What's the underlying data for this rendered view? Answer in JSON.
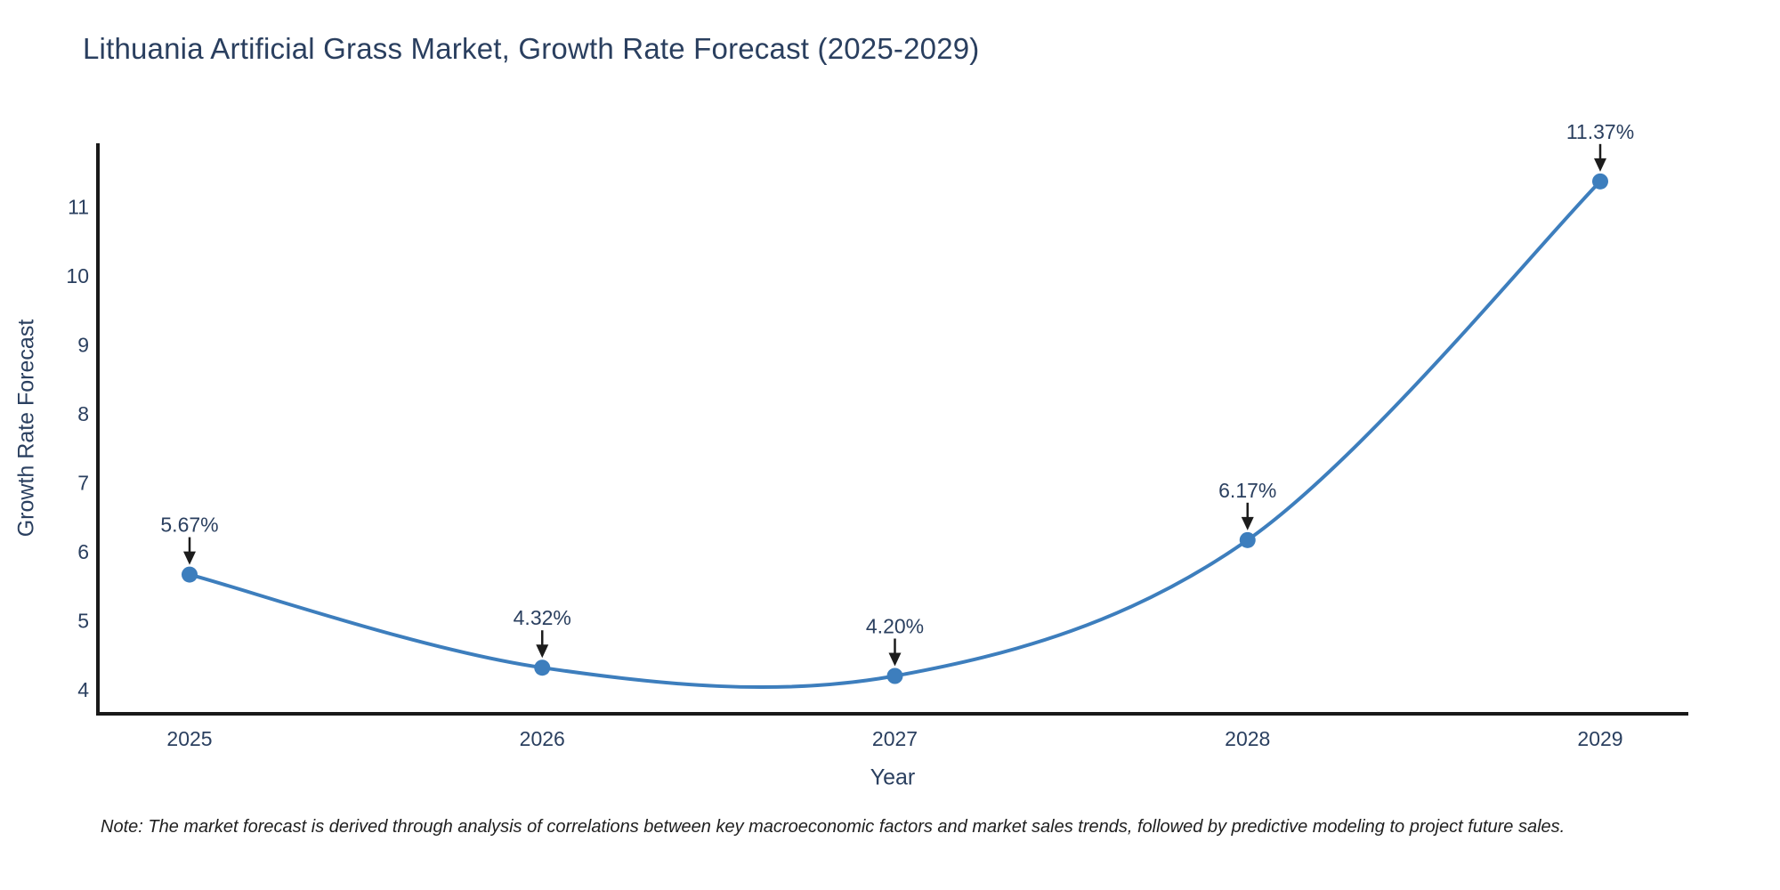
{
  "chart_data": {
    "type": "line",
    "title": "Lithuania Artificial Grass Market, Growth Rate Forecast (2025-2029)",
    "categories": [
      "2025",
      "2026",
      "2027",
      "2028",
      "2029"
    ],
    "values": [
      5.67,
      4.32,
      4.2,
      6.17,
      11.37
    ],
    "point_labels": [
      "5.67%",
      "4.32%",
      "4.20%",
      "6.17%",
      "11.37%"
    ],
    "xlabel": "Year",
    "ylabel": "Growth Rate Forecast",
    "yticks": [
      4,
      5,
      6,
      7,
      8,
      9,
      10,
      11
    ],
    "ylim": [
      3.65,
      11.92
    ],
    "xlim": [
      2024.74,
      2029.25
    ],
    "grid": false,
    "legend": "none",
    "line_shape": "spline",
    "colors": {
      "line": "#3d7ebd",
      "marker": "#3d7ebd",
      "axis": "#191919",
      "tick_text": "#2a3f5f",
      "annotation_text": "#2a3f5f",
      "arrow": "#1c1c1c",
      "background": "#ffffff"
    }
  },
  "footer": {
    "note": "Note: The market forecast is derived through analysis of correlations between key macroeconomic factors and market sales trends, followed by predictive modeling to project future sales."
  }
}
